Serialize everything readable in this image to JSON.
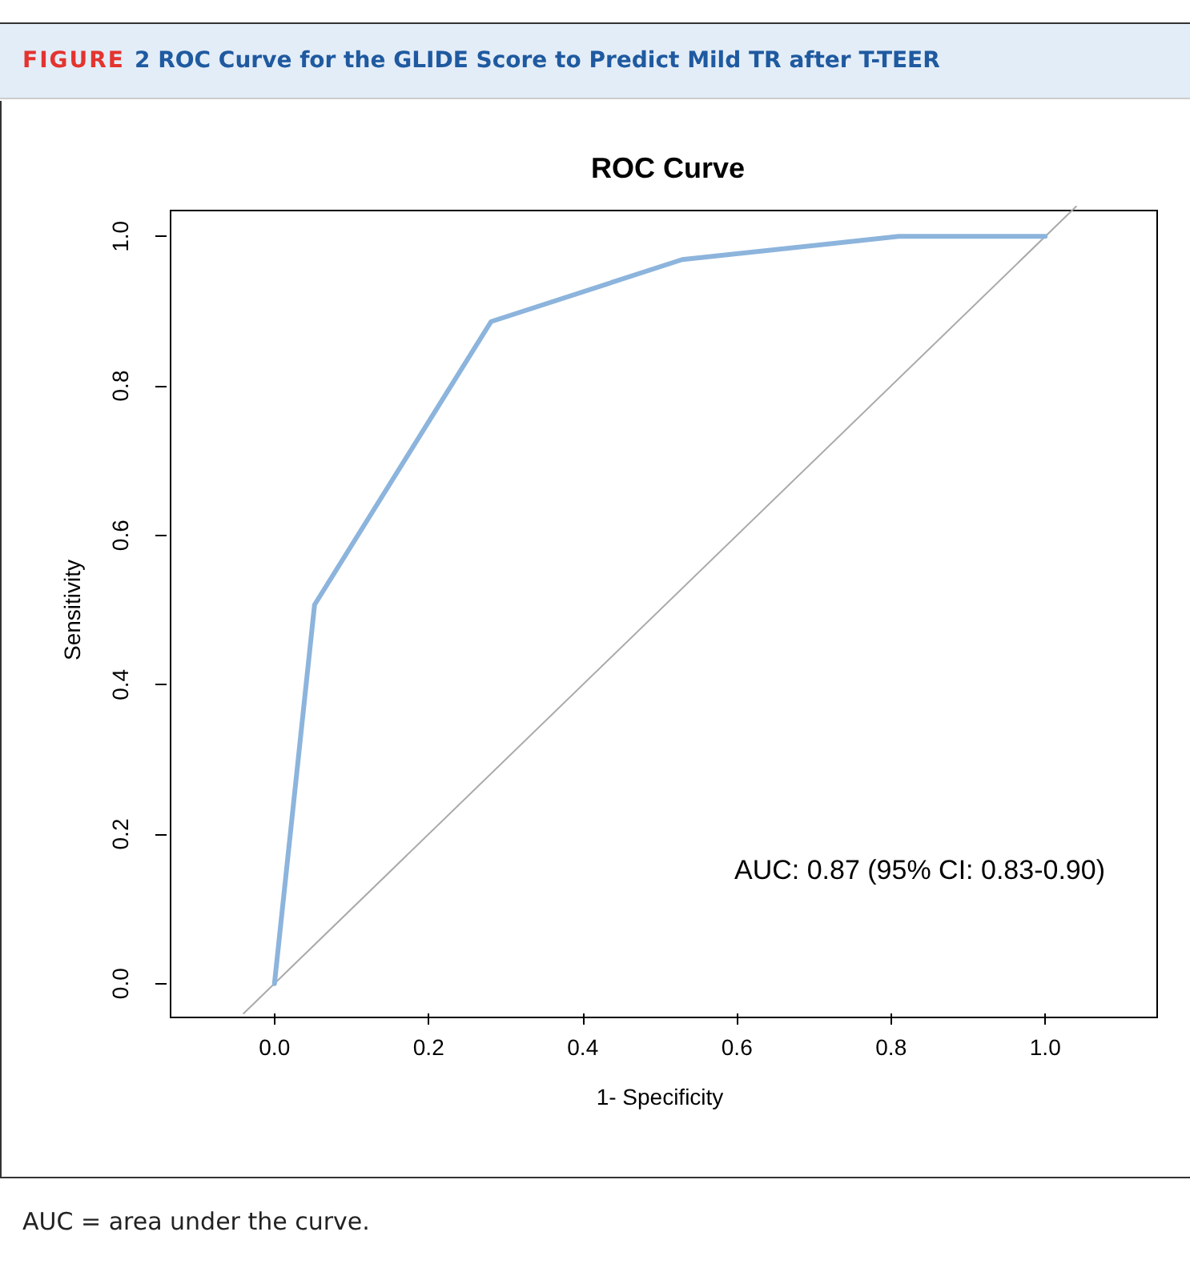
{
  "chart_data": {
    "type": "line",
    "title": "FIGURE 2 ROC Curve for the GLIDE Score to Predict Mild TR after T-TEER",
    "subtitle": "ROC Curve",
    "xlabel": "1- Specificity",
    "ylabel": "Sensitivity",
    "annotations": [
      "AUC: 0.87 (95% CI: 0.83-0.90)",
      "AUC = area under the curve."
    ],
    "xlim": [
      -0.14,
      1.14
    ],
    "ylim": [
      -0.04,
      1.04
    ],
    "xticks": [
      {
        "value": 0,
        "label": "0.0"
      },
      {
        "value": 0.2,
        "label": "0.2"
      },
      {
        "value": 0.4,
        "label": "0.4"
      },
      {
        "value": 0.6,
        "label": "0.6"
      },
      {
        "value": 0.8,
        "label": "0.8"
      },
      {
        "value": 1,
        "label": "1.0"
      }
    ],
    "yticks": [
      {
        "value": 0,
        "label": "0.0"
      },
      {
        "value": 0.2,
        "label": "0.2"
      },
      {
        "value": 0.4,
        "label": "0.4"
      },
      {
        "value": 0.6,
        "label": "0.6"
      },
      {
        "value": 0.8,
        "label": "0.8"
      },
      {
        "value": 1,
        "label": "1.0"
      }
    ],
    "grid": false,
    "marker": "none",
    "line_style": "solid",
    "series": [
      {
        "color": "#aaaaaa",
        "x": [
          -0.04,
          1.04
        ],
        "values": [
          -0.04,
          1.04
        ]
      },
      {
        "color": "#8cb4dc",
        "x": [
          0,
          0.052,
          0.281,
          0.529,
          0.81,
          1
        ],
        "values": [
          0,
          0.507,
          0.886,
          0.969,
          1,
          1
        ]
      }
    ]
  }
}
